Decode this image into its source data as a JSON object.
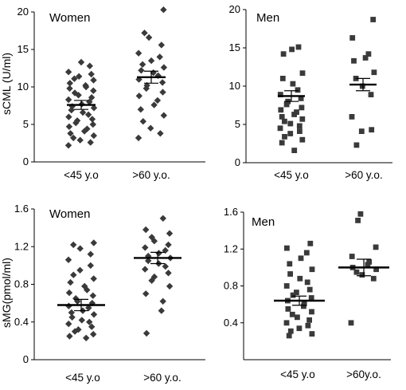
{
  "figure": {
    "ylabel_top": "sCML (U/ml)",
    "ylabel_bottom": "sMG(pmol/ml)"
  },
  "chart_data": [
    {
      "type": "scatter",
      "title": "Women",
      "ylabel": "sCML (U/ml)",
      "ylim": [
        0,
        20
      ],
      "yticks": [
        "0",
        "5",
        "10",
        "15",
        "20"
      ],
      "categories": [
        "<45 y.o",
        ">60 y.o."
      ],
      "marker": "diamond",
      "groups": [
        {
          "category": "<45 y.o",
          "mean": 7.6,
          "sem": 0.6,
          "values": [
            13.3,
            12.8,
            12.0,
            11.7,
            11.4,
            11.1,
            10.9,
            10.5,
            10.2,
            10.0,
            9.8,
            9.5,
            9.2,
            8.9,
            8.6,
            8.3,
            8.0,
            7.7,
            7.4,
            7.2,
            6.9,
            6.6,
            6.3,
            6.0,
            5.7,
            5.5,
            5.2,
            5.0,
            4.7,
            4.4,
            4.1,
            3.8,
            3.5,
            3.2,
            2.9,
            2.6,
            2.2
          ]
        },
        {
          "category": ">60 y.o.",
          "mean": 11.3,
          "sem": 0.8,
          "values": [
            20.3,
            17.2,
            16.6,
            15.6,
            14.5,
            14.0,
            13.5,
            13.0,
            12.6,
            12.2,
            11.9,
            11.5,
            11.0,
            10.6,
            10.2,
            9.8,
            9.3,
            8.8,
            8.2,
            7.6,
            7.0,
            6.2,
            5.4,
            4.5,
            3.8,
            3.2
          ]
        }
      ]
    },
    {
      "type": "scatter",
      "title": "Men",
      "ylabel": "",
      "ylim": [
        0,
        20
      ],
      "yticks": [
        "0",
        "5",
        "10",
        "15",
        "20"
      ],
      "categories": [
        "<45 y.o",
        ">60 y.o."
      ],
      "marker": "square",
      "groups": [
        {
          "category": "<45 y.o",
          "mean": 8.7,
          "sem": 0.7,
          "values": [
            15.1,
            14.8,
            14.2,
            11.7,
            11.0,
            10.3,
            9.5,
            8.9,
            8.4,
            8.0,
            7.6,
            7.2,
            6.9,
            6.6,
            6.3,
            6.0,
            5.7,
            5.4,
            5.1,
            4.8,
            4.5,
            4.1,
            3.8,
            3.4,
            3.0,
            2.6,
            1.6
          ]
        },
        {
          "category": ">60 y.o.",
          "mean": 10.2,
          "sem": 0.8,
          "values": [
            18.7,
            16.3,
            14.2,
            13.7,
            13.3,
            11.8,
            11.0,
            10.0,
            8.9,
            6.0,
            4.3,
            4.1,
            2.3
          ]
        }
      ]
    },
    {
      "type": "scatter",
      "title": "Women",
      "ylabel": "sMG(pmol/ml)",
      "ylim": [
        0,
        1.6
      ],
      "yticks": [
        "0",
        "0.4",
        "0.8",
        "1.2",
        "1.6"
      ],
      "categories": [
        "<45 y.o",
        ">60 y.o."
      ],
      "marker": "diamond",
      "groups": [
        {
          "category": "<45 y.o",
          "mean": 0.58,
          "sem": 0.06,
          "values": [
            1.24,
            1.22,
            1.18,
            1.12,
            1.06,
            1.0,
            0.95,
            0.9,
            0.86,
            0.82,
            0.78,
            0.74,
            0.71,
            0.68,
            0.65,
            0.62,
            0.6,
            0.57,
            0.55,
            0.52,
            0.5,
            0.48,
            0.45,
            0.42,
            0.4,
            0.38,
            0.35,
            0.32,
            0.3,
            0.27,
            0.25,
            0.23
          ]
        },
        {
          "category": ">60 y.o.",
          "mean": 1.08,
          "sem": 0.06,
          "values": [
            1.5,
            1.38,
            1.34,
            1.3,
            1.26,
            1.22,
            1.19,
            1.16,
            1.13,
            1.1,
            1.08,
            1.05,
            1.02,
            0.99,
            0.96,
            0.92,
            0.88,
            0.84,
            0.78,
            0.7,
            0.62,
            0.52,
            0.28
          ]
        }
      ]
    },
    {
      "type": "scatter",
      "title": "Men",
      "ylabel": "",
      "ylim": [
        0,
        1.6
      ],
      "yticks": [
        "0.4",
        "0.8",
        "1.2",
        "1.6"
      ],
      "categories": [
        "<45 y.o",
        ">60y.o."
      ],
      "marker": "square",
      "groups": [
        {
          "category": "<45 y.o",
          "mean": 0.64,
          "sem": 0.05,
          "values": [
            1.26,
            1.21,
            1.16,
            1.1,
            1.04,
            0.98,
            0.93,
            0.88,
            0.84,
            0.8,
            0.76,
            0.73,
            0.7,
            0.67,
            0.64,
            0.61,
            0.58,
            0.55,
            0.52,
            0.49,
            0.46,
            0.43,
            0.4,
            0.37,
            0.34,
            0.31,
            0.28,
            0.26
          ]
        },
        {
          "category": ">60y.o.",
          "mean": 1.0,
          "sem": 0.09,
          "values": [
            1.58,
            1.51,
            1.22,
            1.12,
            1.06,
            1.03,
            1.0,
            0.98,
            0.95,
            0.92,
            0.88,
            0.4
          ]
        }
      ]
    }
  ]
}
